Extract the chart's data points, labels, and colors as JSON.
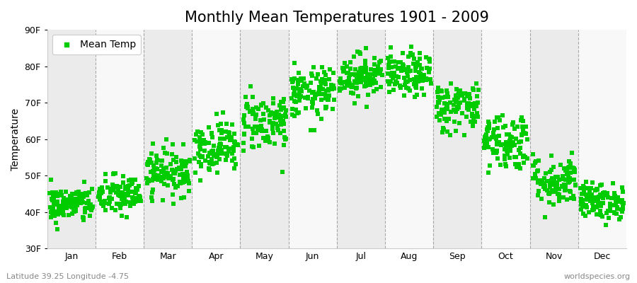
{
  "title": "Monthly Mean Temperatures 1901 - 2009",
  "ylabel": "Temperature",
  "footer_left": "Latitude 39.25 Longitude -4.75",
  "footer_right": "worldspecies.org",
  "ylim": [
    30,
    90
  ],
  "yticks": [
    30,
    40,
    50,
    60,
    70,
    80,
    90
  ],
  "ytick_labels": [
    "30F",
    "40F",
    "50F",
    "60F",
    "70F",
    "80F",
    "90F"
  ],
  "months": [
    "Jan",
    "Feb",
    "Mar",
    "Apr",
    "May",
    "Jun",
    "Jul",
    "Aug",
    "Sep",
    "Oct",
    "Nov",
    "Dec"
  ],
  "legend_label": "Mean Temp",
  "marker_color": "#00CC00",
  "marker": "s",
  "marker_size": 4,
  "bg_gray": "#ebebeb",
  "bg_white": "#f8f8f8",
  "grid_color": "#888888",
  "title_fontsize": 15,
  "axis_fontsize": 10,
  "tick_fontsize": 9,
  "monthly_means": [
    42.0,
    44.5,
    51.0,
    58.0,
    65.0,
    72.5,
    77.5,
    77.5,
    69.0,
    59.5,
    48.5,
    43.0
  ],
  "monthly_stds": [
    2.5,
    2.8,
    3.2,
    3.5,
    4.0,
    3.5,
    3.0,
    3.0,
    3.5,
    4.0,
    3.5,
    2.5
  ],
  "n_years": 109,
  "seed": 42
}
